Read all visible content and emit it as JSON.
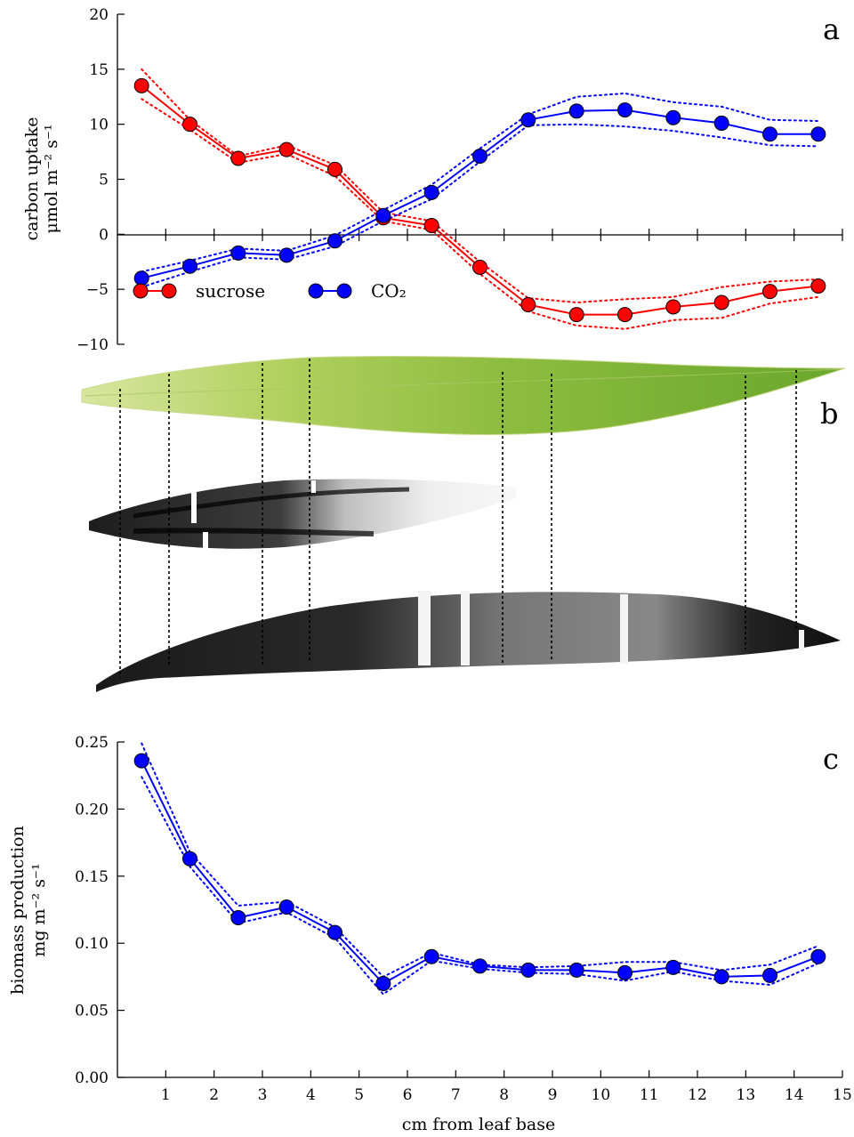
{
  "panels": {
    "a": "a",
    "b": "b",
    "c": "c"
  },
  "colors": {
    "sucrose": "#ff0000",
    "co2": "#0000ff",
    "leaf_green": "#9cc74a",
    "stain_dark": "#1a1a1a"
  },
  "chart_data": [
    {
      "type": "line",
      "panel": "a",
      "x": [
        0.5,
        1.5,
        2.5,
        3.5,
        4.5,
        5.5,
        6.5,
        7.5,
        8.5,
        9.5,
        10.5,
        11.5,
        12.5,
        13.5,
        14.5
      ],
      "xlim": [
        0,
        15
      ],
      "ylim": [
        -10,
        20
      ],
      "yticks": [
        -10,
        -5,
        0,
        5,
        10,
        15,
        20
      ],
      "ytick_labels": [
        "−10",
        "−5",
        "0",
        "5",
        "10",
        "15",
        "20"
      ],
      "ylabel": "carbon uptake",
      "ylabel_units": "μmol m⁻² s⁻¹",
      "legend_position": "lower-left",
      "series": [
        {
          "name": "sucrose",
          "color": "#ff0000",
          "values": [
            13.5,
            10.0,
            6.9,
            7.7,
            5.9,
            1.5,
            0.8,
            -3.0,
            -6.4,
            -7.3,
            -7.3,
            -6.6,
            -6.2,
            -5.2,
            -4.7
          ],
          "upper": [
            15.0,
            10.4,
            7.1,
            8.1,
            6.3,
            2.0,
            1.2,
            -2.5,
            -5.8,
            -6.2,
            -5.9,
            -5.7,
            -4.8,
            -4.3,
            -4.1
          ],
          "lower": [
            12.3,
            9.5,
            6.5,
            7.3,
            5.3,
            1.2,
            0.4,
            -3.6,
            -7.0,
            -8.3,
            -8.6,
            -7.8,
            -7.6,
            -6.3,
            -5.7
          ]
        },
        {
          "name": "CO₂",
          "color": "#0000ff",
          "values": [
            -4.0,
            -2.9,
            -1.7,
            -1.9,
            -0.6,
            1.7,
            3.8,
            7.1,
            10.4,
            11.2,
            11.3,
            10.6,
            10.1,
            9.1,
            9.1
          ],
          "upper": [
            -3.4,
            -2.4,
            -1.3,
            -1.5,
            -0.1,
            2.2,
            4.5,
            7.8,
            10.9,
            12.5,
            12.8,
            12.0,
            11.6,
            10.4,
            10.3
          ],
          "lower": [
            -4.8,
            -3.4,
            -2.1,
            -2.3,
            -1.1,
            1.2,
            3.2,
            6.6,
            9.9,
            10.0,
            9.8,
            9.4,
            8.8,
            8.1,
            8.0
          ]
        }
      ]
    },
    {
      "type": "line",
      "panel": "c",
      "x": [
        0.5,
        1.5,
        2.5,
        3.5,
        4.5,
        5.5,
        6.5,
        7.5,
        8.5,
        9.5,
        10.5,
        11.5,
        12.5,
        13.5,
        14.5
      ],
      "xlim": [
        0,
        15
      ],
      "ylim": [
        0,
        0.25
      ],
      "yticks": [
        0,
        0.05,
        0.1,
        0.15,
        0.2,
        0.25
      ],
      "ytick_labels": [
        "0.00",
        "0.05",
        "0.10",
        "0.15",
        "0.20",
        "0.25"
      ],
      "xticks": [
        1,
        2,
        3,
        4,
        5,
        6,
        7,
        8,
        9,
        10,
        11,
        12,
        13,
        14,
        15
      ],
      "xtick_labels": [
        "1",
        "2",
        "3",
        "4",
        "5",
        "6",
        "7",
        "8",
        "9",
        "10",
        "11",
        "12",
        "13",
        "14",
        "15"
      ],
      "xlabel": "cm from leaf base",
      "ylabel": "biomass production",
      "ylabel_units": "mg m⁻² s⁻¹",
      "series": [
        {
          "color": "#0000ff",
          "values": [
            0.236,
            0.163,
            0.119,
            0.127,
            0.108,
            0.07,
            0.09,
            0.083,
            0.08,
            0.08,
            0.078,
            0.082,
            0.075,
            0.076,
            0.09
          ],
          "upper": [
            0.249,
            0.168,
            0.128,
            0.131,
            0.112,
            0.075,
            0.093,
            0.084,
            0.082,
            0.083,
            0.086,
            0.086,
            0.08,
            0.084,
            0.098
          ],
          "lower": [
            0.224,
            0.157,
            0.115,
            0.123,
            0.104,
            0.062,
            0.087,
            0.081,
            0.078,
            0.077,
            0.072,
            0.079,
            0.072,
            0.069,
            0.085
          ]
        }
      ]
    }
  ]
}
